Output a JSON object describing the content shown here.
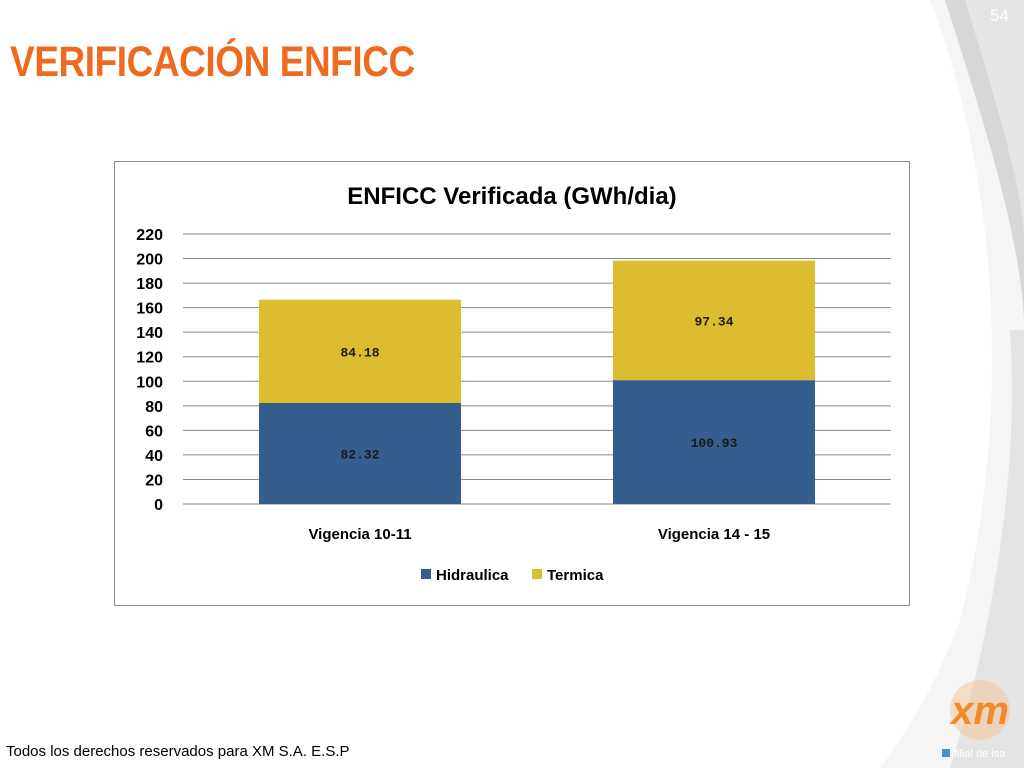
{
  "slide": {
    "title": "VERIFICACIÓN ENFICC",
    "page_number": "54",
    "footer": "Todos los derechos reservados para XM S.A. E.S.P",
    "logo_text": "xm",
    "logo_tagline": "filial de isa"
  },
  "colors": {
    "title": "#ee6a1f",
    "hidraulica": "#355d8e",
    "termica": "#dcbd2f",
    "logo": "#f08a2a"
  },
  "chart_data": {
    "type": "bar",
    "stacked": true,
    "title": "ENFICC Verificada (GWh/dia)",
    "categories": [
      "Vigencia 10-11",
      "Vigencia 14 - 15"
    ],
    "series": [
      {
        "name": "Hidraulica",
        "values": [
          82.32,
          100.93
        ],
        "color": "#355d8e",
        "labels": [
          "82.32",
          "100.93"
        ]
      },
      {
        "name": "Termica",
        "values": [
          84.18,
          97.34
        ],
        "color": "#dcbd2f",
        "labels": [
          "84.18",
          "97.34"
        ]
      }
    ],
    "ylim": [
      0,
      220
    ],
    "yticks": [
      "0",
      "20",
      "40",
      "60",
      "80",
      "100",
      "120",
      "140",
      "160",
      "180",
      "200",
      "220"
    ],
    "grid": true,
    "legend": "bottom"
  }
}
